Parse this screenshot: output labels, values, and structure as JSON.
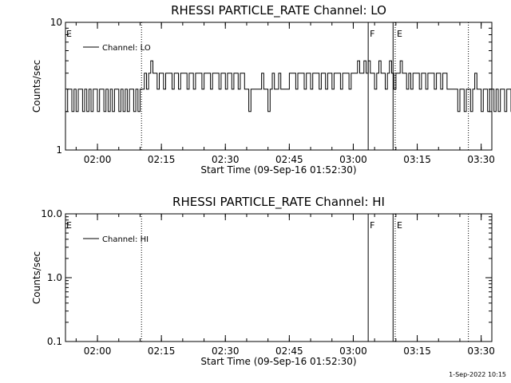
{
  "chart_data": [
    {
      "type": "line",
      "title": "RHESSI PARTICLE_RATE Channel: LO",
      "xlabel": "Start Time (09-Sep-16 01:52:30)",
      "ylabel": "Counts/sec",
      "yscale": "log",
      "ylim": [
        1,
        10
      ],
      "yticks": [
        {
          "value": 1,
          "label": "1"
        },
        {
          "value": 10,
          "label": "10"
        }
      ],
      "xlim": [
        "01:52:30",
        "03:32:30"
      ],
      "xticks": [
        "02:00",
        "02:15",
        "02:30",
        "02:45",
        "03:00",
        "03:15",
        "03:30"
      ],
      "legend": {
        "position": "top-left",
        "entries": [
          "Channel: LO"
        ]
      },
      "grid": false,
      "vlines": [
        {
          "x": "02:10:20",
          "style": "dotted",
          "label": ""
        },
        {
          "x": "03:03:30",
          "style": "solid",
          "label": "F"
        },
        {
          "x": "03:09:20",
          "style": "solid",
          "label": ""
        },
        {
          "x": "03:09:50",
          "style": "dotted",
          "label": "E"
        },
        {
          "x": "03:27:00",
          "style": "dotted",
          "label": ""
        }
      ],
      "edge_labels": [
        {
          "x": "01:52:30",
          "label": "E"
        }
      ],
      "series": [
        {
          "name": "Channel: LO",
          "x_start": "01:52:30",
          "step_seconds": 30,
          "values": [
            2,
            3,
            3,
            2,
            3,
            2,
            3,
            3,
            2,
            3,
            2,
            3,
            2,
            3,
            3,
            2,
            3,
            3,
            2,
            3,
            2,
            3,
            2,
            3,
            3,
            2,
            3,
            2,
            3,
            2,
            3,
            3,
            2,
            3,
            2,
            3,
            3,
            4,
            3,
            4,
            5,
            4,
            4,
            3,
            4,
            4,
            3,
            4,
            4,
            4,
            3,
            4,
            4,
            3,
            4,
            4,
            4,
            3,
            4,
            4,
            3,
            4,
            4,
            4,
            3,
            4,
            4,
            4,
            3,
            4,
            4,
            4,
            3,
            4,
            4,
            3,
            4,
            4,
            3,
            4,
            4,
            3,
            4,
            4,
            3,
            3,
            2,
            3,
            3,
            3,
            3,
            3,
            4,
            3,
            3,
            2,
            3,
            4,
            3,
            3,
            4,
            3,
            3,
            3,
            3,
            4,
            4,
            4,
            3,
            4,
            4,
            4,
            3,
            4,
            4,
            3,
            4,
            4,
            4,
            3,
            4,
            4,
            3,
            4,
            4,
            3,
            4,
            4,
            4,
            3,
            4,
            4,
            4,
            3,
            4,
            4,
            4,
            5,
            4,
            4,
            5,
            4,
            5,
            4,
            4,
            3,
            4,
            5,
            4,
            4,
            3,
            4,
            5,
            4,
            3,
            4,
            4,
            5,
            4,
            4,
            3,
            4,
            3,
            4,
            4,
            4,
            3,
            4,
            4,
            3,
            4,
            4,
            4,
            3,
            4,
            4,
            3,
            4,
            4,
            3,
            3,
            3,
            3,
            3,
            2,
            3,
            3,
            2,
            3,
            3,
            2,
            3,
            4,
            3,
            3,
            2,
            3,
            3,
            2,
            3,
            3,
            2,
            3,
            2,
            3,
            3,
            2,
            3,
            3,
            2,
            3,
            2,
            3,
            3
          ]
        }
      ]
    },
    {
      "type": "line",
      "title": "RHESSI PARTICLE_RATE Channel: HI",
      "xlabel": "Start Time (09-Sep-16 01:52:30)",
      "ylabel": "Counts/sec",
      "yscale": "log",
      "ylim": [
        0.1,
        10
      ],
      "yticks": [
        {
          "value": 0.1,
          "label": "0.1"
        },
        {
          "value": 1,
          "label": "1.0"
        },
        {
          "value": 10,
          "label": "10.0"
        }
      ],
      "xlim": [
        "01:52:30",
        "03:32:30"
      ],
      "xticks": [
        "02:00",
        "02:15",
        "02:30",
        "02:45",
        "03:00",
        "03:15",
        "03:30"
      ],
      "legend": {
        "position": "top-left",
        "entries": [
          "Channel: HI"
        ]
      },
      "grid": false,
      "vlines": [
        {
          "x": "02:10:20",
          "style": "dotted",
          "label": ""
        },
        {
          "x": "03:03:30",
          "style": "solid",
          "label": "F"
        },
        {
          "x": "03:09:20",
          "style": "solid",
          "label": ""
        },
        {
          "x": "03:09:50",
          "style": "dotted",
          "label": "E"
        },
        {
          "x": "03:27:00",
          "style": "dotted",
          "label": ""
        }
      ],
      "edge_labels": [
        {
          "x": "01:52:30",
          "label": "E"
        }
      ],
      "series": [
        {
          "name": "Channel: HI",
          "values": []
        }
      ]
    }
  ],
  "footer": "1-Sep-2022 10:15"
}
